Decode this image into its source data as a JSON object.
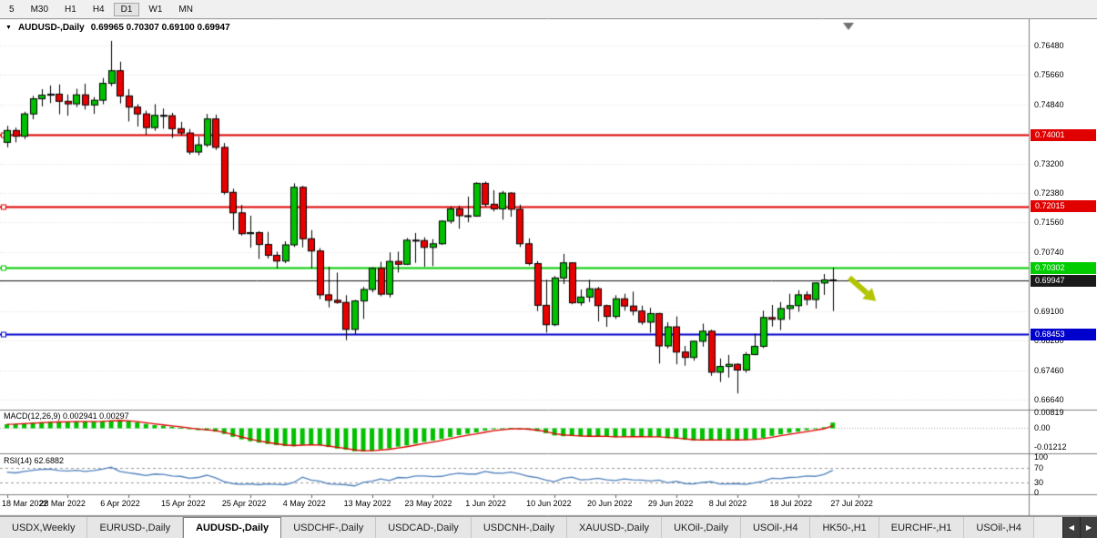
{
  "toolbar": {
    "periods": [
      "5",
      "M30",
      "H1",
      "H4",
      "D1",
      "W1",
      "MN"
    ],
    "active": "D1"
  },
  "chart": {
    "title": "AUDUSD-,Daily",
    "ohlc_line": "0.69965 0.70307 0.69100 0.69947",
    "dropdown_icon": "▼"
  },
  "price_axis": {
    "visible_labels": [
      {
        "text": "0.76480",
        "price": 0.7648
      },
      {
        "text": "0.75660",
        "price": 0.7566
      },
      {
        "text": "0.74840",
        "price": 0.7484
      },
      {
        "text": "0.73200",
        "price": 0.732
      },
      {
        "text": "0.72380",
        "price": 0.7238
      },
      {
        "text": "0.71560",
        "price": 0.7156
      },
      {
        "text": "0.70740",
        "price": 0.7074
      },
      {
        "text": "0.69100",
        "price": 0.691
      },
      {
        "text": "0.68280",
        "price": 0.6828
      },
      {
        "text": "0.67460",
        "price": 0.6746
      },
      {
        "text": "0.66640",
        "price": 0.6664
      }
    ],
    "grid": {
      "start": 0.6664,
      "step": 0.0082,
      "count": 13
    }
  },
  "chart_data": {
    "type": "candlestick",
    "symbol": "AUDUSD-",
    "period": "Daily",
    "current_bar": {
      "open": 0.69965,
      "high": 0.70307,
      "low": 0.691,
      "close": 0.69947
    },
    "ylim": [
      0.6641,
      0.7719
    ],
    "x_axis_labels": [
      "18 Mar 2022",
      "28 Mar 2022",
      "6 Apr 2022",
      "15 Apr 2022",
      "25 Apr 2022",
      "4 May 2022",
      "13 May 2022",
      "23 May 2022",
      "1 Jun 2022",
      "10 Jun 2022",
      "20 Jun 2022",
      "29 Jun 2022",
      "8 Jul 2022",
      "18 Jul 2022",
      "27 Jul 2022"
    ],
    "candles": [
      [
        0.7379,
        0.7425,
        0.7365,
        0.7412
      ],
      [
        0.7412,
        0.742,
        0.7379,
        0.7396
      ],
      [
        0.7396,
        0.7464,
        0.7388,
        0.7458
      ],
      [
        0.7458,
        0.7508,
        0.7443,
        0.75
      ],
      [
        0.75,
        0.7527,
        0.7479,
        0.751
      ],
      [
        0.751,
        0.7537,
        0.7488,
        0.7513
      ],
      [
        0.7513,
        0.754,
        0.7457,
        0.7493
      ],
      [
        0.7493,
        0.7512,
        0.7453,
        0.7486
      ],
      [
        0.7486,
        0.7528,
        0.7477,
        0.7511
      ],
      [
        0.7511,
        0.7542,
        0.747,
        0.7483
      ],
      [
        0.7483,
        0.7505,
        0.7458,
        0.7496
      ],
      [
        0.7496,
        0.7558,
        0.7485,
        0.7543
      ],
      [
        0.7543,
        0.7661,
        0.7535,
        0.7578
      ],
      [
        0.7578,
        0.7603,
        0.7487,
        0.7508
      ],
      [
        0.7508,
        0.7527,
        0.7437,
        0.7477
      ],
      [
        0.7477,
        0.7485,
        0.7423,
        0.7458
      ],
      [
        0.7458,
        0.7467,
        0.74,
        0.742
      ],
      [
        0.742,
        0.7485,
        0.7411,
        0.7454
      ],
      [
        0.7454,
        0.7473,
        0.7417,
        0.7453
      ],
      [
        0.7453,
        0.7461,
        0.7391,
        0.7417
      ],
      [
        0.7417,
        0.7436,
        0.7398,
        0.7405
      ],
      [
        0.7405,
        0.7416,
        0.7345,
        0.7352
      ],
      [
        0.7352,
        0.7395,
        0.7343,
        0.7372
      ],
      [
        0.7372,
        0.7458,
        0.7366,
        0.7444
      ],
      [
        0.7444,
        0.7456,
        0.7358,
        0.7365
      ],
      [
        0.7365,
        0.7377,
        0.7234,
        0.724
      ],
      [
        0.724,
        0.725,
        0.7135,
        0.7183
      ],
      [
        0.7183,
        0.7205,
        0.712,
        0.7125
      ],
      [
        0.7125,
        0.7175,
        0.7086,
        0.7128
      ],
      [
        0.7128,
        0.7132,
        0.7055,
        0.7095
      ],
      [
        0.7095,
        0.713,
        0.7056,
        0.7065
      ],
      [
        0.7065,
        0.7075,
        0.7029,
        0.7049
      ],
      [
        0.7049,
        0.7104,
        0.7043,
        0.7094
      ],
      [
        0.7094,
        0.7265,
        0.7088,
        0.7254
      ],
      [
        0.7254,
        0.7258,
        0.7087,
        0.7111
      ],
      [
        0.7111,
        0.7135,
        0.7029,
        0.7077
      ],
      [
        0.7077,
        0.7085,
        0.6943,
        0.6955
      ],
      [
        0.6955,
        0.7033,
        0.692,
        0.694
      ],
      [
        0.694,
        0.7017,
        0.693,
        0.6934
      ],
      [
        0.6934,
        0.6954,
        0.6829,
        0.6859
      ],
      [
        0.6859,
        0.6941,
        0.6845,
        0.6938
      ],
      [
        0.6938,
        0.6977,
        0.6888,
        0.697
      ],
      [
        0.697,
        0.7032,
        0.6962,
        0.7029
      ],
      [
        0.7029,
        0.7047,
        0.6951,
        0.6957
      ],
      [
        0.6957,
        0.7073,
        0.6948,
        0.7048
      ],
      [
        0.7048,
        0.7075,
        0.7017,
        0.704
      ],
      [
        0.704,
        0.7113,
        0.7038,
        0.7107
      ],
      [
        0.7107,
        0.7127,
        0.7044,
        0.7106
      ],
      [
        0.7106,
        0.7115,
        0.7033,
        0.7087
      ],
      [
        0.7087,
        0.711,
        0.7035,
        0.7097
      ],
      [
        0.7097,
        0.7162,
        0.7094,
        0.716
      ],
      [
        0.716,
        0.7201,
        0.7153,
        0.7194
      ],
      [
        0.7194,
        0.7203,
        0.7139,
        0.7175
      ],
      [
        0.7175,
        0.7228,
        0.7157,
        0.7174
      ],
      [
        0.7174,
        0.7268,
        0.7172,
        0.7265
      ],
      [
        0.7265,
        0.727,
        0.72,
        0.7207
      ],
      [
        0.7207,
        0.7246,
        0.7187,
        0.7194
      ],
      [
        0.7194,
        0.7244,
        0.7164,
        0.7238
      ],
      [
        0.7238,
        0.724,
        0.7172,
        0.7193
      ],
      [
        0.7193,
        0.7206,
        0.7088,
        0.7097
      ],
      [
        0.7097,
        0.7112,
        0.7037,
        0.7042
      ],
      [
        0.7042,
        0.7049,
        0.691,
        0.6926
      ],
      [
        0.6926,
        0.6997,
        0.685,
        0.6872
      ],
      [
        0.6872,
        0.7007,
        0.6868,
        0.7002
      ],
      [
        0.7002,
        0.7069,
        0.6985,
        0.7044
      ],
      [
        0.7044,
        0.7045,
        0.6929,
        0.6933
      ],
      [
        0.6933,
        0.697,
        0.6925,
        0.6949
      ],
      [
        0.6949,
        0.6997,
        0.6935,
        0.6972
      ],
      [
        0.6972,
        0.6977,
        0.6881,
        0.6925
      ],
      [
        0.6925,
        0.6928,
        0.6866,
        0.6895
      ],
      [
        0.6895,
        0.6954,
        0.6888,
        0.6944
      ],
      [
        0.6944,
        0.6958,
        0.6911,
        0.6924
      ],
      [
        0.6924,
        0.6964,
        0.6898,
        0.691
      ],
      [
        0.691,
        0.6925,
        0.6872,
        0.6879
      ],
      [
        0.6879,
        0.6919,
        0.685,
        0.6903
      ],
      [
        0.6903,
        0.6905,
        0.6764,
        0.6813
      ],
      [
        0.6813,
        0.6879,
        0.6806,
        0.6866
      ],
      [
        0.6866,
        0.6895,
        0.6762,
        0.6796
      ],
      [
        0.6796,
        0.6813,
        0.6758,
        0.6781
      ],
      [
        0.6781,
        0.6828,
        0.6772,
        0.6826
      ],
      [
        0.6826,
        0.6875,
        0.6811,
        0.6854
      ],
      [
        0.6854,
        0.6858,
        0.673,
        0.674
      ],
      [
        0.674,
        0.6778,
        0.6713,
        0.6756
      ],
      [
        0.6756,
        0.6788,
        0.6725,
        0.6762
      ],
      [
        0.6762,
        0.6765,
        0.6681,
        0.6746
      ],
      [
        0.6746,
        0.6796,
        0.6739,
        0.6789
      ],
      [
        0.6789,
        0.6847,
        0.6787,
        0.6812
      ],
      [
        0.6812,
        0.6911,
        0.6807,
        0.6892
      ],
      [
        0.6892,
        0.6927,
        0.6867,
        0.6887
      ],
      [
        0.6887,
        0.6935,
        0.6857,
        0.6917
      ],
      [
        0.6917,
        0.6958,
        0.6886,
        0.6925
      ],
      [
        0.6925,
        0.6968,
        0.6908,
        0.6955
      ],
      [
        0.6955,
        0.6965,
        0.6926,
        0.6942
      ],
      [
        0.6942,
        0.6989,
        0.6917,
        0.6988
      ],
      [
        0.6988,
        0.7013,
        0.6955,
        0.69965
      ],
      [
        0.69965,
        0.70307,
        0.691,
        0.69947
      ]
    ],
    "levels": [
      {
        "price": 0.74001,
        "label": "0.74001",
        "color": "#e00000",
        "width": 2
      },
      {
        "price": 0.72015,
        "label": "0.72015",
        "color": "#e00000",
        "width": 2
      },
      {
        "price": 0.70302,
        "label": "0.70302",
        "color": "#00cc00",
        "width": 2
      },
      {
        "price": 0.69947,
        "label": "0.69947",
        "color": "#1a1a1a",
        "width": 1
      },
      {
        "price": 0.68453,
        "label": "0.68453",
        "color": "#0000cc",
        "width": 2
      }
    ]
  },
  "indicators": {
    "macd": {
      "label": "MACD(12,26,9)",
      "values_text": "0.002941 0.00297",
      "ylim": [
        -0.01212,
        0.00819
      ],
      "axis_labels": [
        {
          "text": "0.00819",
          "value": 0.00819
        },
        {
          "text": "0.00",
          "value": 0
        },
        {
          "text": "-0.01212",
          "value": -0.01212
        }
      ],
      "histogram": [
        0.002,
        0.0022,
        0.0025,
        0.0028,
        0.0031,
        0.0033,
        0.0034,
        0.0034,
        0.0035,
        0.0035,
        0.0034,
        0.0036,
        0.004,
        0.0041,
        0.0036,
        0.003,
        0.0022,
        0.0016,
        0.0012,
        0.0007,
        0.0002,
        -0.0005,
        -0.001,
        -0.0012,
        -0.0018,
        -0.003,
        -0.0045,
        -0.0058,
        -0.0068,
        -0.0075,
        -0.0082,
        -0.0088,
        -0.0093,
        -0.0094,
        -0.0086,
        -0.0085,
        -0.0089,
        -0.0098,
        -0.0106,
        -0.0112,
        -0.012,
        -0.0121,
        -0.0118,
        -0.011,
        -0.0105,
        -0.0096,
        -0.009,
        -0.008,
        -0.0071,
        -0.0064,
        -0.0056,
        -0.0046,
        -0.0036,
        -0.0029,
        -0.0022,
        -0.0012,
        -0.0006,
        -0.0003,
        0.0001,
        -0.0002,
        -0.0008,
        -0.0015,
        -0.0026,
        -0.0038,
        -0.0042,
        -0.004,
        -0.0043,
        -0.0044,
        -0.0042,
        -0.0044,
        -0.0047,
        -0.0045,
        -0.0044,
        -0.0044,
        -0.0046,
        -0.0045,
        -0.0052,
        -0.0054,
        -0.006,
        -0.0064,
        -0.0063,
        -0.006,
        -0.0063,
        -0.0062,
        -0.006,
        -0.006,
        -0.0056,
        -0.005,
        -0.004,
        -0.0032,
        -0.0024,
        -0.0018,
        -0.001,
        -0.0005,
        0.0005,
        0.0029
      ],
      "colors": {
        "histogram": "#00c000",
        "signal": "#e00000"
      }
    },
    "rsi": {
      "label": "RSI(14)",
      "value_text": "62.6882",
      "ylim": [
        0,
        100
      ],
      "levels": [
        70,
        30
      ],
      "axis_labels": [
        {
          "text": "100",
          "value": 100
        },
        {
          "text": "70",
          "value": 70
        },
        {
          "text": "30",
          "value": 30
        },
        {
          "text": "0",
          "value": 0
        }
      ],
      "values": [
        58,
        56,
        60,
        63,
        65,
        66,
        62,
        61,
        63,
        60,
        62,
        66,
        71,
        60,
        56,
        53,
        49,
        53,
        52,
        48,
        47,
        42,
        44,
        50,
        43,
        33,
        28,
        26,
        27,
        25,
        27,
        26,
        25,
        31,
        45,
        37,
        34,
        27,
        26,
        25,
        22,
        31,
        34,
        40,
        36,
        44,
        43,
        48,
        48,
        46,
        47,
        52,
        55,
        53,
        53,
        60,
        56,
        55,
        58,
        53,
        47,
        44,
        37,
        33,
        42,
        45,
        38,
        39,
        42,
        38,
        36,
        40,
        38,
        37,
        35,
        37,
        30,
        34,
        28,
        27,
        31,
        33,
        27,
        27,
        28,
        26,
        30,
        34,
        42,
        41,
        44,
        45,
        48,
        47,
        52,
        63
      ],
      "color": "#4f81bd"
    }
  },
  "annotations": {
    "arrow": {
      "shape": "arrow-down-right",
      "color": "#b2c500"
    },
    "shift_marker": {
      "shape": "triangle-down",
      "color": "#707070"
    }
  },
  "colors": {
    "up": "#00c000",
    "down": "#e80000",
    "outline": "#000000",
    "grid": "#dcdcdc",
    "background": "#ffffff",
    "separator": "#808080",
    "axis_text": "#000000"
  },
  "tabbar": {
    "tabs": [
      "USDX,Weekly",
      "EURUSD-,Daily",
      "AUDUSD-,Daily",
      "USDCHF-,Daily",
      "USDCAD-,Daily",
      "USDCNH-,Daily",
      "XAUUSD-,Daily",
      "UKOil-,Daily",
      "USOil-,H4",
      "HK50-,H1",
      "EURCHF-,H1",
      "USOil-,H4"
    ],
    "active_index": 2,
    "scroll_left_icon": "◀",
    "scroll_right_icon": "▶"
  }
}
